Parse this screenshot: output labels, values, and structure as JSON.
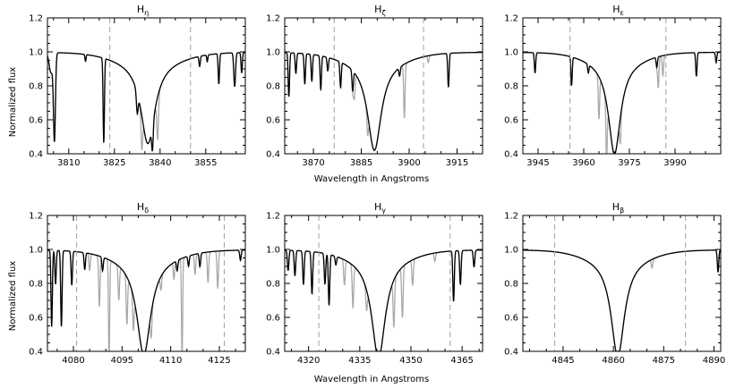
{
  "figure": {
    "xlabel": "Wavelength in Angstroms",
    "ylabel": "Normalized flux"
  },
  "colors": {
    "model": "#000000",
    "observed": "#a8a8a8",
    "window": "#a0a0a0",
    "axis": "#000000"
  },
  "chart_data": [
    {
      "type": "line",
      "title": "H",
      "title_subscript": "η",
      "xlabel": "",
      "ylabel": "Normalized flux",
      "xlim": [
        3803,
        3868
      ],
      "ylim": [
        0.4,
        1.2
      ],
      "xticks": [
        3810,
        3825,
        3840,
        3855
      ],
      "yticks": [
        0.4,
        0.6,
        0.8,
        1.0,
        1.2
      ],
      "window": [
        3823.5,
        3850
      ],
      "line_center": 3836,
      "line_depth": 0.48,
      "line_width": 2.8,
      "narrow_lines": [
        [
          3804.2,
          0.12,
          0.9
        ],
        [
          3805.3,
          0.5,
          0.45
        ],
        [
          3821.5,
          0.5,
          0.3
        ],
        [
          3815.5,
          0.04,
          0.25
        ],
        [
          3832.5,
          0.12,
          0.4
        ],
        [
          3837.5,
          0.15,
          0.35
        ],
        [
          3853,
          0.06,
          0.3
        ],
        [
          3855.5,
          0.04,
          0.25
        ],
        [
          3859.3,
          0.18,
          0.3
        ],
        [
          3864.5,
          0.2,
          0.4
        ],
        [
          3866.8,
          0.12,
          0.3
        ]
      ],
      "observed_extra": [
        [
          3834,
          0.2,
          0.35
        ],
        [
          3839.2,
          0.25,
          0.4
        ]
      ]
    },
    {
      "type": "line",
      "title": "H",
      "title_subscript": "ζ",
      "xlabel": "Wavelength in Angstroms",
      "ylabel": "",
      "xlim": [
        3861,
        3923
      ],
      "ylim": [
        0.4,
        1.2
      ],
      "xticks": [
        3870,
        3885,
        3900,
        3915
      ],
      "yticks": [
        0.4,
        0.6,
        0.8,
        1.0,
        1.2
      ],
      "window": [
        3876.5,
        3904.5
      ],
      "line_center": 3889.1,
      "line_depth": 0.52,
      "line_width": 2.6,
      "narrow_lines": [
        [
          3862.3,
          0.26,
          0.3
        ],
        [
          3864.5,
          0.12,
          0.3
        ],
        [
          3867.3,
          0.18,
          0.3
        ],
        [
          3869.5,
          0.16,
          0.3
        ],
        [
          3872.3,
          0.2,
          0.3
        ],
        [
          3874.5,
          0.08,
          0.3
        ],
        [
          3878.5,
          0.15,
          0.3
        ],
        [
          3882.3,
          0.12,
          0.3
        ],
        [
          3897,
          0.05,
          0.3
        ],
        [
          3912.3,
          0.2,
          0.3
        ]
      ],
      "observed_extra": [
        [
          3882.8,
          0.15,
          0.35
        ],
        [
          3887,
          0.12,
          0.3
        ],
        [
          3898.5,
          0.32,
          0.3
        ],
        [
          3906,
          0.04,
          0.3
        ]
      ]
    },
    {
      "type": "line",
      "title": "H",
      "title_subscript": "ε",
      "xlabel": "",
      "ylabel": "",
      "xlim": [
        3940,
        4005
      ],
      "ylim": [
        0.4,
        1.2
      ],
      "xticks": [
        3945,
        3960,
        3975,
        3990
      ],
      "yticks": [
        0.4,
        0.6,
        0.8,
        1.0,
        1.2
      ],
      "window": [
        3955.5,
        3987
      ],
      "line_center": 3970.1,
      "line_depth": 0.54,
      "line_width": 2.4,
      "narrow_lines": [
        [
          3944,
          0.12,
          0.3
        ],
        [
          3956,
          0.17,
          0.3
        ],
        [
          3961.5,
          0.05,
          0.3
        ],
        [
          3984,
          0.06,
          0.3
        ],
        [
          3997,
          0.14,
          0.3
        ],
        [
          4003.5,
          0.06,
          0.3
        ]
      ],
      "observed_extra": [
        [
          3965,
          0.25,
          0.3
        ],
        [
          3967.5,
          0.35,
          0.3
        ],
        [
          3972,
          0.15,
          0.3
        ],
        [
          3984.5,
          0.18,
          0.3
        ],
        [
          3986,
          0.12,
          0.3
        ]
      ]
    },
    {
      "type": "line",
      "title": "H",
      "title_subscript": "δ",
      "xlabel": "",
      "ylabel": "Normalized flux",
      "xlim": [
        4072,
        4133
      ],
      "ylim": [
        0.4,
        1.2
      ],
      "xticks": [
        4080,
        4095,
        4110,
        4125
      ],
      "yticks": [
        0.4,
        0.6,
        0.8,
        1.0,
        1.2
      ],
      "window": [
        4081,
        4126.5
      ],
      "line_center": 4101.7,
      "line_depth": 0.56,
      "line_width": 2.6,
      "narrow_lines": [
        [
          4073.3,
          0.45,
          0.3
        ],
        [
          4074.5,
          0.2,
          0.3
        ],
        [
          4076.3,
          0.45,
          0.3
        ],
        [
          4079.5,
          0.2,
          0.3
        ],
        [
          4083.5,
          0.1,
          0.3
        ],
        [
          4089,
          0.08,
          0.3
        ],
        [
          4112,
          0.06,
          0.3
        ],
        [
          4115.5,
          0.06,
          0.3
        ],
        [
          4119,
          0.08,
          0.3
        ],
        [
          4131.5,
          0.06,
          0.3
        ]
      ],
      "observed_extra": [
        [
          4085,
          0.1,
          0.3
        ],
        [
          4088,
          0.3,
          0.3
        ],
        [
          4091,
          0.62,
          0.25
        ],
        [
          4094,
          0.2,
          0.3
        ],
        [
          4096.5,
          0.28,
          0.3
        ],
        [
          4098.5,
          0.2,
          0.3
        ],
        [
          4104,
          0.15,
          0.3
        ],
        [
          4107,
          0.08,
          0.3
        ],
        [
          4111,
          0.1,
          0.3
        ],
        [
          4113.5,
          0.62,
          0.25
        ],
        [
          4117.5,
          0.12,
          0.3
        ],
        [
          4121.5,
          0.18,
          0.3
        ],
        [
          4124.5,
          0.22,
          0.3
        ]
      ]
    },
    {
      "type": "line",
      "title": "H",
      "title_subscript": "γ",
      "xlabel": "Wavelength in Angstroms",
      "ylabel": "",
      "xlim": [
        4313,
        4371
      ],
      "ylim": [
        0.4,
        1.2
      ],
      "xticks": [
        4320,
        4335,
        4350,
        4365
      ],
      "yticks": [
        0.4,
        0.6,
        0.8,
        1.0,
        1.2
      ],
      "window": [
        4323,
        4361.5
      ],
      "line_center": 4340.5,
      "line_depth": 0.58,
      "line_width": 2.4,
      "narrow_lines": [
        [
          4314,
          0.12,
          0.3
        ],
        [
          4316,
          0.15,
          0.3
        ],
        [
          4318.5,
          0.2,
          0.3
        ],
        [
          4321,
          0.25,
          0.3
        ],
        [
          4324.8,
          0.18,
          0.3
        ],
        [
          4326,
          0.3,
          0.3
        ],
        [
          4328,
          0.05,
          0.3
        ],
        [
          4362.5,
          0.3,
          0.3
        ],
        [
          4364.5,
          0.2,
          0.3
        ],
        [
          4368.5,
          0.1,
          0.3
        ]
      ],
      "observed_extra": [
        [
          4330.5,
          0.15,
          0.3
        ],
        [
          4333,
          0.25,
          0.3
        ],
        [
          4337,
          0.12,
          0.3
        ],
        [
          4345,
          0.28,
          0.3
        ],
        [
          4347.5,
          0.3,
          0.3
        ],
        [
          4350.5,
          0.15,
          0.3
        ],
        [
          4357,
          0.05,
          0.3
        ]
      ]
    },
    {
      "type": "line",
      "title": "H",
      "title_subscript": "β",
      "xlabel": "",
      "ylabel": "",
      "xlim": [
        4833,
        4892
      ],
      "ylim": [
        0.4,
        1.2
      ],
      "xticks": [
        4845,
        4860,
        4875,
        4890
      ],
      "yticks": [
        0.4,
        0.6,
        0.8,
        1.0,
        1.2
      ],
      "window": [
        4842.5,
        4881.5
      ],
      "line_center": 4861.3,
      "line_depth": 0.57,
      "line_width": 2.4,
      "narrow_lines": [
        [
          4891.2,
          0.13,
          0.3
        ]
      ],
      "observed_extra": [
        [
          4871.5,
          0.05,
          0.3
        ]
      ]
    }
  ]
}
